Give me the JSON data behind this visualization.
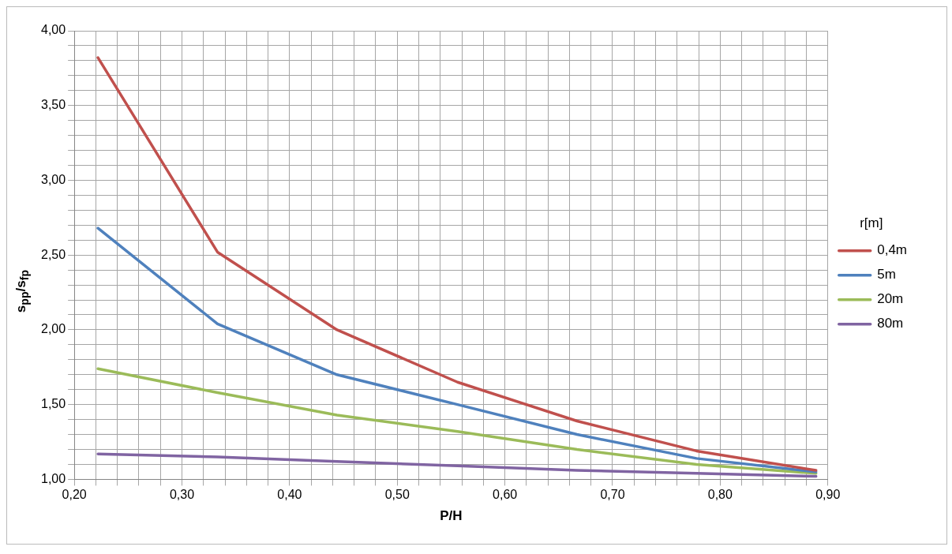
{
  "chart_data": {
    "type": "line",
    "xlabel": "P/H",
    "ylabel": "s$_{pp}$/s$_{fp}$",
    "legend_title": "r[m]",
    "legend": "right",
    "grid": true,
    "marker": "none",
    "line_style": "solid",
    "x": [
      0.222,
      0.333,
      0.444,
      0.556,
      0.667,
      0.778,
      0.889
    ],
    "xlim": [
      0.2,
      0.9
    ],
    "ylim": [
      1,
      4
    ],
    "xticks": [
      {
        "value": 0.2,
        "label": "0,20"
      },
      {
        "value": 0.22,
        "label": null
      },
      {
        "value": 0.24,
        "label": null
      },
      {
        "value": 0.26,
        "label": null
      },
      {
        "value": 0.28,
        "label": null
      },
      {
        "value": 0.3,
        "label": "0,30"
      },
      {
        "value": 0.32,
        "label": null
      },
      {
        "value": 0.34,
        "label": null
      },
      {
        "value": 0.36,
        "label": null
      },
      {
        "value": 0.38,
        "label": null
      },
      {
        "value": 0.4,
        "label": "0,40"
      },
      {
        "value": 0.42,
        "label": null
      },
      {
        "value": 0.44,
        "label": null
      },
      {
        "value": 0.46,
        "label": null
      },
      {
        "value": 0.48,
        "label": null
      },
      {
        "value": 0.5,
        "label": "0,50"
      },
      {
        "value": 0.52,
        "label": null
      },
      {
        "value": 0.54,
        "label": null
      },
      {
        "value": 0.56,
        "label": null
      },
      {
        "value": 0.58,
        "label": null
      },
      {
        "value": 0.6,
        "label": "0,60"
      },
      {
        "value": 0.62,
        "label": null
      },
      {
        "value": 0.64,
        "label": null
      },
      {
        "value": 0.66,
        "label": null
      },
      {
        "value": 0.68,
        "label": null
      },
      {
        "value": 0.7,
        "label": "0,70"
      },
      {
        "value": 0.72,
        "label": null
      },
      {
        "value": 0.74,
        "label": null
      },
      {
        "value": 0.76,
        "label": null
      },
      {
        "value": 0.78,
        "label": null
      },
      {
        "value": 0.8,
        "label": "0,80"
      },
      {
        "value": 0.82,
        "label": null
      },
      {
        "value": 0.84,
        "label": null
      },
      {
        "value": 0.86,
        "label": null
      },
      {
        "value": 0.88,
        "label": null
      },
      {
        "value": 0.9,
        "label": "0,90"
      }
    ],
    "yticks": [
      {
        "value": 1,
        "label": "1,00"
      },
      {
        "value": 1.1,
        "label": null
      },
      {
        "value": 1.2,
        "label": null
      },
      {
        "value": 1.3,
        "label": null
      },
      {
        "value": 1.4,
        "label": null
      },
      {
        "value": 1.5,
        "label": "1,50"
      },
      {
        "value": 1.6,
        "label": null
      },
      {
        "value": 1.7,
        "label": null
      },
      {
        "value": 1.8,
        "label": null
      },
      {
        "value": 1.9,
        "label": null
      },
      {
        "value": 2,
        "label": "2,00"
      },
      {
        "value": 2.1,
        "label": null
      },
      {
        "value": 2.2,
        "label": null
      },
      {
        "value": 2.3,
        "label": null
      },
      {
        "value": 2.4,
        "label": null
      },
      {
        "value": 2.5,
        "label": "2,50"
      },
      {
        "value": 2.6,
        "label": null
      },
      {
        "value": 2.7,
        "label": null
      },
      {
        "value": 2.8,
        "label": null
      },
      {
        "value": 2.9,
        "label": null
      },
      {
        "value": 3,
        "label": "3,00"
      },
      {
        "value": 3.1,
        "label": null
      },
      {
        "value": 3.2,
        "label": null
      },
      {
        "value": 3.3,
        "label": null
      },
      {
        "value": 3.4,
        "label": null
      },
      {
        "value": 3.5,
        "label": "3,50"
      },
      {
        "value": 3.6,
        "label": null
      },
      {
        "value": 3.7,
        "label": null
      },
      {
        "value": 3.8,
        "label": null
      },
      {
        "value": 3.9,
        "label": null
      },
      {
        "value": 4,
        "label": "4,00"
      }
    ],
    "series": [
      {
        "name": "0,4m",
        "color": "#c0504d",
        "values": [
          3.82,
          2.52,
          2.0,
          1.65,
          1.39,
          1.19,
          1.06
        ]
      },
      {
        "name": "5m",
        "color": "#4f81bd",
        "values": [
          2.68,
          2.04,
          1.7,
          1.5,
          1.3,
          1.14,
          1.05
        ]
      },
      {
        "name": "20m",
        "color": "#9bbb59",
        "values": [
          1.74,
          1.58,
          1.43,
          1.32,
          1.2,
          1.1,
          1.04
        ]
      },
      {
        "name": "80m",
        "color": "#8064a2",
        "values": [
          1.17,
          1.15,
          1.12,
          1.09,
          1.06,
          1.04,
          1.02
        ]
      }
    ]
  }
}
